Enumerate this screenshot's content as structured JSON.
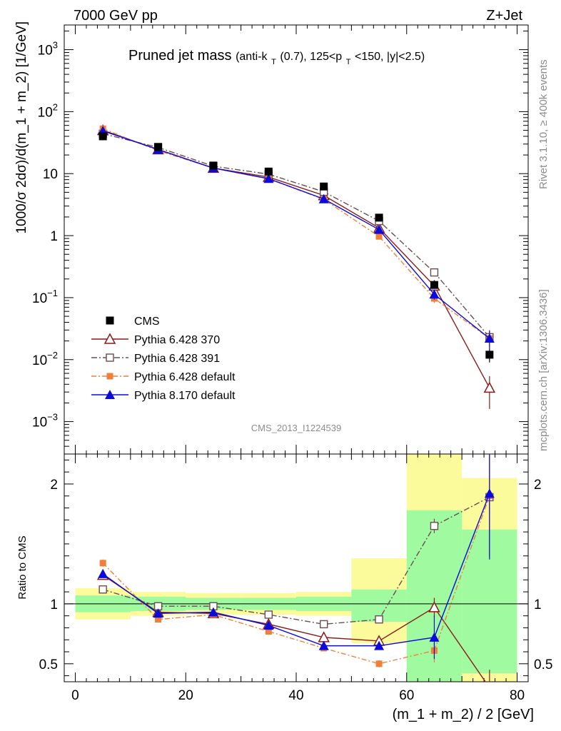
{
  "header": {
    "left": "7000 GeV pp",
    "right": "Z+Jet",
    "title_main": "Pruned jet mass",
    "title_cuts_pre": "(anti-k",
    "title_cuts_sub1": "T",
    "title_cuts_mid": "(0.7), 125<p",
    "title_cuts_sub2": "T",
    "title_cuts_post": "<150, |y|<2.5)"
  },
  "side_labels": {
    "top": "Rivet 3.1.10, ≥ 400k events",
    "bottom": "mcplots.cern.ch [arXiv:1306.3436]"
  },
  "analysis_ref": "CMS_2013_I1224539",
  "colors": {
    "cms": "#000000",
    "py370": "#8b1a1a",
    "py391": "#6b4c52",
    "pydefault": "#f07f3c",
    "py8": "#0a0adc",
    "band_inner": "#a0fba0",
    "band_outer": "#fbfb9c"
  },
  "chart_data": [
    {
      "type": "scatter",
      "panel": "main",
      "ylabel": "1000/σ 2dσ)/d(m_1 + m_2) [1/GeV]",
      "yscale": "log",
      "ylim": [
        0.0003,
        2500
      ],
      "xlim": [
        -2,
        82
      ],
      "ytick_labels": [
        "10^-3",
        "10^-2",
        "10^-1",
        "1",
        "10",
        "10^2",
        "10^3"
      ],
      "legend_position": "lower-left",
      "x": [
        5,
        15,
        25,
        35,
        45,
        55,
        65,
        75
      ],
      "series": [
        {
          "name": "CMS",
          "marker": "square-filled",
          "values": [
            40,
            27,
            13.5,
            10.8,
            6.2,
            1.95,
            0.16,
            0.012
          ],
          "yerr": [
            2,
            1.2,
            0.7,
            0.6,
            0.4,
            0.15,
            0.02,
            0.003
          ]
        },
        {
          "name": "Pythia 6.428 370",
          "marker": "triangle-open",
          "values": [
            50,
            24.5,
            12.3,
            8.8,
            4.45,
            1.33,
            0.155,
            0.0035
          ],
          "yerr": [
            1.5,
            0.7,
            0.4,
            0.3,
            0.2,
            0.1,
            0.02,
            0.0019
          ]
        },
        {
          "name": "Pythia 6.428 391",
          "marker": "square-open",
          "values": [
            44,
            26.5,
            13.2,
            9.8,
            5.1,
            1.72,
            0.255,
            0.023
          ],
          "yerr": [
            1.3,
            0.8,
            0.4,
            0.3,
            0.2,
            0.1,
            0.02,
            0.007
          ]
        },
        {
          "name": "Pythia 6.428 default",
          "marker": "square-small-filled",
          "values": [
            53,
            23.5,
            12.3,
            8.25,
            3.85,
            0.97,
            0.097,
            0.022
          ],
          "yerr": [
            1.5,
            0.7,
            0.4,
            0.3,
            0.2,
            0.1,
            0.015,
            0.006
          ]
        },
        {
          "name": "Pythia 8.170 default",
          "marker": "triangle-filled",
          "values": [
            49,
            24.5,
            12.3,
            8.3,
            3.9,
            1.25,
            0.113,
            0.022
          ],
          "yerr": [
            1.5,
            0.7,
            0.4,
            0.3,
            0.2,
            0.1,
            0.02,
            0.007
          ]
        }
      ]
    },
    {
      "type": "scatter",
      "panel": "ratio",
      "xlabel": "(m_1 + m_2) / 2 [GeV]",
      "ylabel": "Ratio to CMS",
      "ylim": [
        0.35,
        2.25
      ],
      "xlim": [
        -2,
        82
      ],
      "xticks": [
        0,
        20,
        40,
        60,
        80
      ],
      "yticks": [
        0.5,
        1,
        2
      ],
      "x": [
        5,
        15,
        25,
        35,
        45,
        55,
        65,
        75
      ],
      "band_bins": [
        [
          0,
          10
        ],
        [
          10,
          20
        ],
        [
          20,
          30
        ],
        [
          30,
          40
        ],
        [
          40,
          50
        ],
        [
          50,
          60
        ],
        [
          60,
          70
        ],
        [
          70,
          80
        ]
      ],
      "band_inner": [
        [
          0.93,
          1.07
        ],
        [
          0.94,
          1.06
        ],
        [
          0.95,
          1.05
        ],
        [
          0.95,
          1.05
        ],
        [
          0.94,
          1.06
        ],
        [
          0.85,
          1.12
        ],
        [
          0.35,
          1.78
        ],
        [
          0.42,
          1.62
        ]
      ],
      "band_outer": [
        [
          0.87,
          1.13
        ],
        [
          0.9,
          1.1
        ],
        [
          0.91,
          1.09
        ],
        [
          0.91,
          1.09
        ],
        [
          0.9,
          1.1
        ],
        [
          0.67,
          1.38
        ],
        [
          0.35,
          2.3
        ],
        [
          0.2,
          2.05
        ]
      ],
      "series": [
        {
          "name": "Pythia 6.428 370",
          "values": [
            1.24,
            0.93,
            0.92,
            0.83,
            0.72,
            0.69,
            0.97,
            0.3
          ],
          "yerr": [
            0.03,
            0.02,
            0.02,
            0.02,
            0.02,
            0.03,
            0.08,
            0.15
          ]
        },
        {
          "name": "Pythia 6.428 391",
          "values": [
            1.12,
            0.98,
            0.98,
            0.91,
            0.83,
            0.87,
            1.65,
            1.89
          ],
          "yerr": [
            0.02,
            0.02,
            0.02,
            0.02,
            0.02,
            0.02,
            0.06,
            0.5
          ]
        },
        {
          "name": "Pythia 6.428 default",
          "values": [
            1.34,
            0.87,
            0.91,
            0.77,
            0.63,
            0.5,
            0.61,
            1.9
          ],
          "yerr": [
            0.03,
            0.02,
            0.02,
            0.02,
            0.02,
            0.03,
            0.1,
            0.5
          ]
        },
        {
          "name": "Pythia 8.170 default",
          "values": [
            1.25,
            0.92,
            0.93,
            0.82,
            0.65,
            0.65,
            0.72,
            1.92
          ],
          "yerr": [
            0.03,
            0.02,
            0.02,
            0.02,
            0.02,
            0.03,
            0.18,
            0.55
          ]
        }
      ]
    }
  ]
}
